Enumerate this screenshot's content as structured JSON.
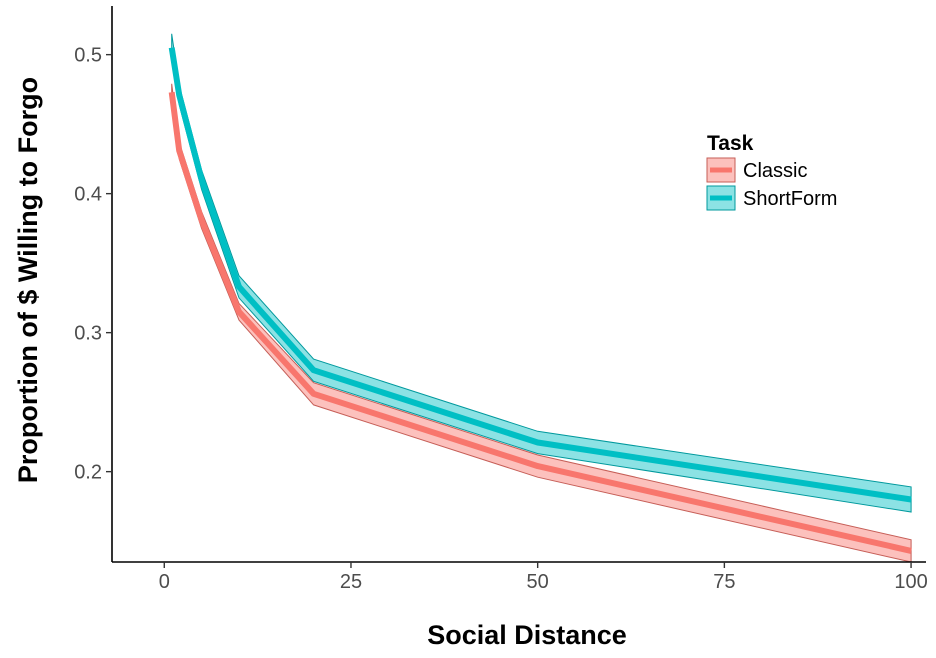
{
  "chart_data": {
    "type": "line",
    "xlabel": "Social Distance",
    "ylabel": "Proportion of $ Willing to Forgo",
    "xlim": [
      -7,
      102
    ],
    "ylim": [
      0.135,
      0.535
    ],
    "x_ticks": [
      0,
      25,
      50,
      75,
      100
    ],
    "x_tick_labels": [
      "0",
      "25",
      "50",
      "75",
      "100"
    ],
    "y_ticks": [
      0.2,
      0.3,
      0.4,
      0.5
    ],
    "y_tick_labels": [
      "0.2",
      "0.3",
      "0.4",
      "0.5"
    ],
    "grid": false,
    "legend": {
      "title": "Task",
      "position": "right"
    },
    "series": [
      {
        "name": "Classic",
        "color": "#F8766D",
        "x": [
          1,
          2,
          5,
          10,
          20,
          50,
          100
        ],
        "y": [
          0.473,
          0.431,
          0.381,
          0.315,
          0.256,
          0.204,
          0.143
        ],
        "ci_lower": [
          0.467,
          0.425,
          0.375,
          0.309,
          0.248,
          0.196,
          0.135
        ],
        "ci_upper": [
          0.479,
          0.437,
          0.387,
          0.321,
          0.264,
          0.212,
          0.151
        ]
      },
      {
        "name": "ShortForm",
        "color": "#00BFC4",
        "x": [
          1,
          2,
          5,
          10,
          20,
          50,
          100
        ],
        "y": [
          0.505,
          0.471,
          0.41,
          0.333,
          0.273,
          0.221,
          0.18
        ],
        "ci_lower": [
          0.495,
          0.464,
          0.403,
          0.325,
          0.265,
          0.213,
          0.171
        ],
        "ci_upper": [
          0.515,
          0.478,
          0.417,
          0.341,
          0.281,
          0.229,
          0.189
        ]
      }
    ]
  }
}
